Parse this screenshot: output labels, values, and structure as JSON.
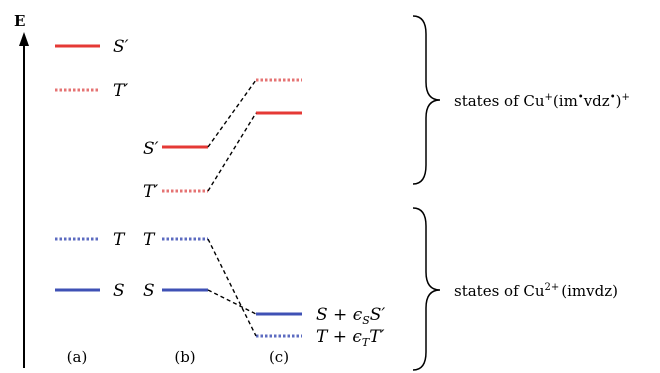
{
  "axis": {
    "label": "E"
  },
  "colors": {
    "singlet": "#e53935",
    "triplet_red": "#e57373",
    "singlet_blue": "#3f51b5",
    "triplet_blue": "#5c6bc0",
    "connector": "#000000"
  },
  "columns": [
    {
      "id": "a",
      "label": "(a)"
    },
    {
      "id": "b",
      "label": "(b)"
    },
    {
      "id": "c",
      "label": "(c)"
    }
  ],
  "levels": {
    "a_S_prime": {
      "label": "S′",
      "style": "solid",
      "color": "red"
    },
    "a_T_prime": {
      "label": "T′",
      "style": "dotted",
      "color": "red"
    },
    "a_T": {
      "label": "T",
      "style": "dotted",
      "color": "blue"
    },
    "a_S": {
      "label": "S",
      "style": "solid",
      "color": "blue"
    },
    "b_S_prime": {
      "label": "S′",
      "style": "solid",
      "color": "red"
    },
    "b_T_prime": {
      "label": "T′",
      "style": "dotted",
      "color": "red"
    },
    "b_T": {
      "label": "T",
      "style": "dotted",
      "color": "blue"
    },
    "b_S": {
      "label": "S",
      "style": "solid",
      "color": "blue"
    },
    "c_top_dotted": {
      "label": "",
      "style": "dotted",
      "color": "red"
    },
    "c_top_solid": {
      "label": "",
      "style": "solid",
      "color": "red"
    },
    "c_S_mixed": {
      "label": "S + ϵ",
      "label_sub": "S",
      "label_tail": "S′",
      "style": "solid",
      "color": "blue"
    },
    "c_T_mixed": {
      "label": "T + ϵ",
      "label_sub": "T",
      "label_tail": "T′",
      "style": "dotted",
      "color": "blue"
    }
  },
  "braces": {
    "upper": {
      "text_main": "states of Cu",
      "text_sup1": "+",
      "text_mid": "(im",
      "text_sup2": "•",
      "text_mid2": "vdz",
      "text_sup3": "•",
      "text_end": ")",
      "text_sup4": "+"
    },
    "lower": {
      "text_main": "states of Cu",
      "text_sup1": "2+",
      "text_end": "(imvdz)"
    }
  }
}
